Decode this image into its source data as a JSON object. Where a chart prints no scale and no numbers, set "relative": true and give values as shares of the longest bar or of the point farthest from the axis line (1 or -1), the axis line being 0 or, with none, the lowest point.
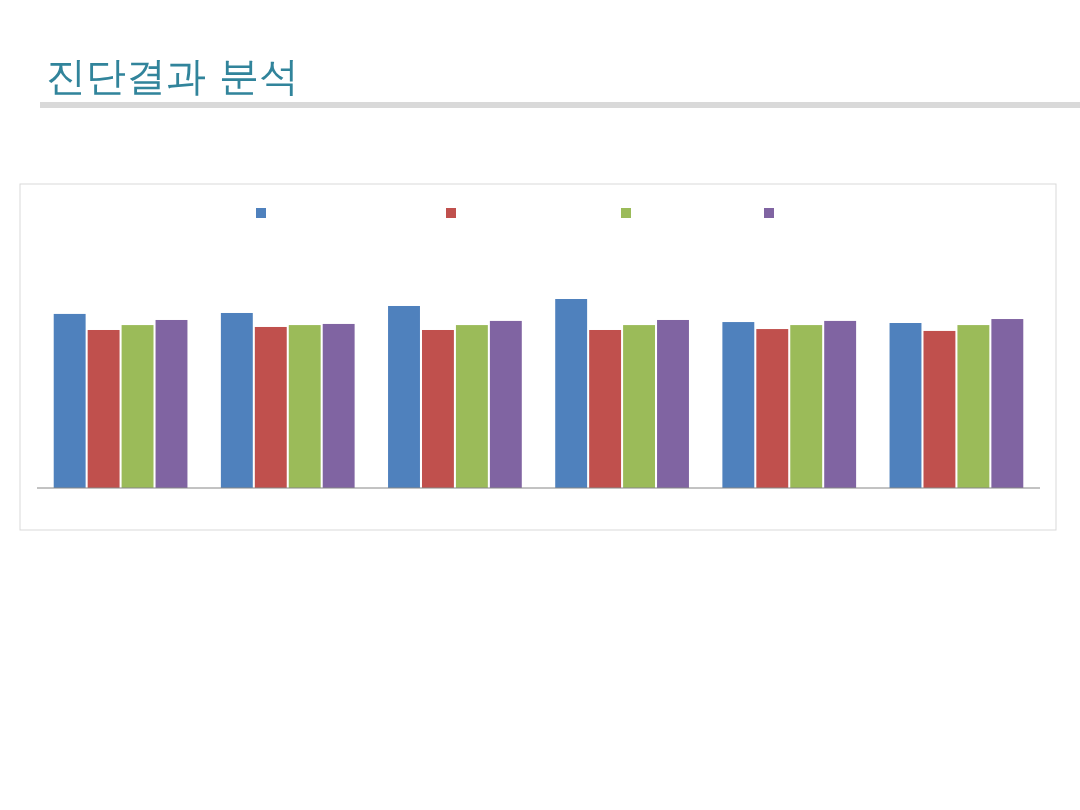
{
  "chart_data": {
    "type": "bar",
    "title": "진단결과 분석",
    "relative": true,
    "categories": [
      null,
      null,
      null,
      null,
      null,
      null
    ],
    "series": [
      {
        "color": "#4f81bd",
        "values": [
          0.921,
          0.926,
          0.963,
          1,
          0.878,
          0.873
        ]
      },
      {
        "color": "#c0504d",
        "values": [
          0.836,
          0.852,
          0.836,
          0.836,
          0.841,
          0.831
        ]
      },
      {
        "color": "#9bbb59",
        "values": [
          0.862,
          0.862,
          0.862,
          0.862,
          0.862,
          0.862
        ]
      },
      {
        "color": "#8064a2",
        "values": [
          0.889,
          0.868,
          0.884,
          0.889,
          0.884,
          0.894
        ]
      }
    ]
  }
}
